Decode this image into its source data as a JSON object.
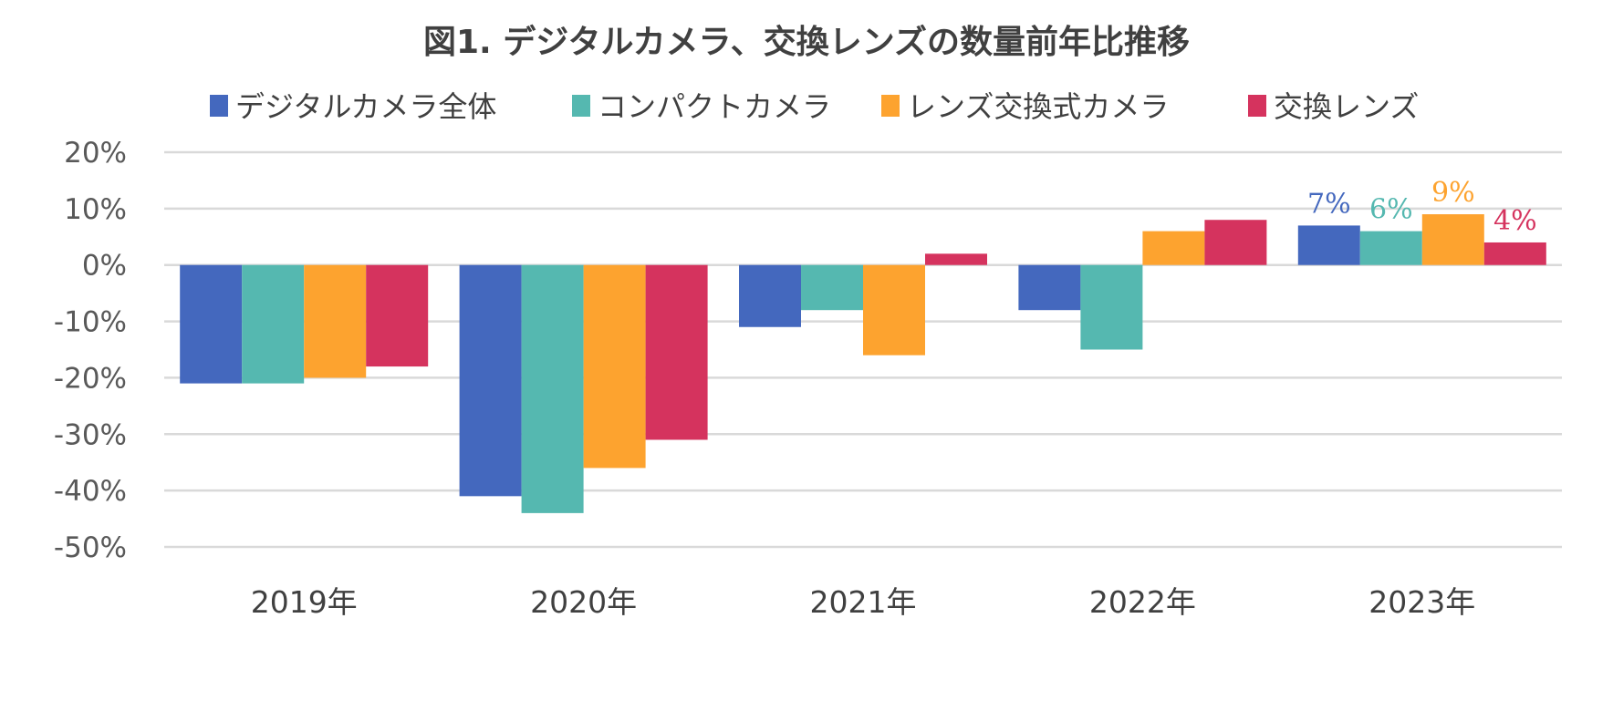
{
  "chart_data": {
    "type": "bar",
    "title": "図1. デジタルカメラ、交換レンズの数量前年比推移",
    "xlabel": "",
    "ylabel": "",
    "categories": [
      "2019年",
      "2020年",
      "2021年",
      "2022年",
      "2023年"
    ],
    "ylim": [
      -50,
      20
    ],
    "yticks": [
      20,
      10,
      0,
      -10,
      -20,
      -30,
      -40,
      -50
    ],
    "ytick_labels": [
      "20%",
      "10%",
      "0%",
      "-10%",
      "-20%",
      "-30%",
      "-40%",
      "-50%"
    ],
    "grid": true,
    "legend_position": "top",
    "series": [
      {
        "name": "デジタルカメラ全体",
        "color": "#4468BE",
        "values": [
          -21,
          -41,
          -11,
          -8,
          7
        ]
      },
      {
        "name": "コンパクトカメラ",
        "color": "#55B8B0",
        "values": [
          -21,
          -44,
          -8,
          -15,
          6
        ]
      },
      {
        "name": "レンズ交換式カメラ",
        "color": "#FDA32F",
        "values": [
          -20,
          -36,
          -16,
          6,
          9
        ]
      },
      {
        "name": "交換レンズ",
        "color": "#D5335E",
        "values": [
          -18,
          -31,
          2,
          8,
          4
        ]
      }
    ],
    "data_labels": [
      {
        "series": 0,
        "category": 4,
        "text": "7%"
      },
      {
        "series": 1,
        "category": 4,
        "text": "6%"
      },
      {
        "series": 2,
        "category": 4,
        "text": "9%"
      },
      {
        "series": 3,
        "category": 4,
        "text": "4%"
      }
    ]
  }
}
